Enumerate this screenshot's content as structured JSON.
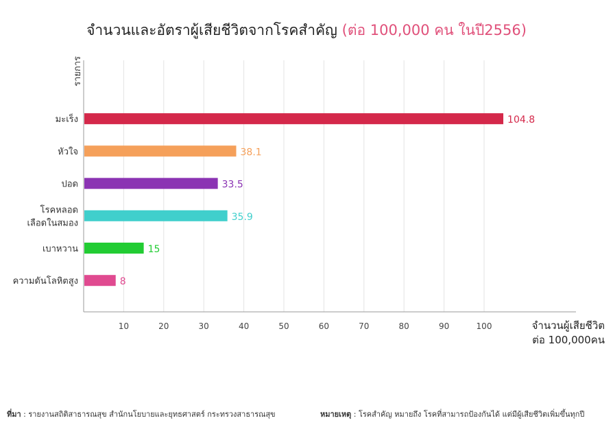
{
  "header": {
    "title": "จำนวนและอัตราผู้เสียชีวิตจากโรคสำคัญ",
    "subtitle": "(ต่อ 100,000 คน ในปี2556)"
  },
  "chart_data": {
    "type": "bar",
    "orientation": "horizontal",
    "categories": [
      [
        "มะเร็ง"
      ],
      [
        "หัวใจ"
      ],
      [
        "ปอด"
      ],
      [
        "โรคหลอด",
        "เลือดในสมอง"
      ],
      [
        "เบาหวาน"
      ],
      [
        "ความดันโลหิตสูง"
      ]
    ],
    "values": [
      104.8,
      38.1,
      33.5,
      35.9,
      15,
      8
    ],
    "value_labels": [
      "104.8",
      "38.1",
      "33.5",
      "35.9",
      "15",
      "8"
    ],
    "colors": [
      "#d4284a",
      "#f5a05a",
      "#8b33b3",
      "#40cfcc",
      "#22cc33",
      "#e04a90"
    ],
    "ylabel": "รายการ",
    "xlabel": [
      "จำนวนผู้เสียชีวิต",
      "ต่อ 100,000คน"
    ],
    "xticks": [
      10,
      20,
      30,
      40,
      50,
      60,
      70,
      80,
      90,
      100
    ],
    "xlim": [
      0,
      122
    ],
    "grid": "vertical"
  },
  "footer": {
    "source_label": "ที่มา",
    "source_text": " : รายงานสถิติสาธารณสุข สำนักนโยบายและยุทธศาสตร์ กระทรวงสาธารณสุข",
    "note_label": "หมายเหตุ",
    "note_text": " : โรคสำคัญ หมายถึง โรคที่สามารถป้องกันได้ แต่มีผู้เสียชีวิตเพิ่มขึ้นทุกปี"
  }
}
